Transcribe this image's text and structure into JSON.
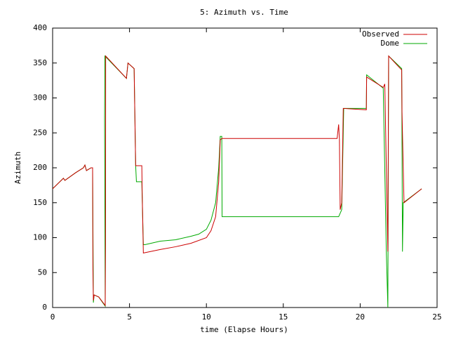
{
  "chart_data": {
    "type": "line",
    "title": "5: Azimuth vs. Time",
    "x_label": "time (Elapse Hours)",
    "y_label": "Azimuth",
    "xlim": [
      0,
      25
    ],
    "ylim": [
      0,
      400
    ],
    "xticks": [
      0,
      5,
      10,
      15,
      20,
      25
    ],
    "yticks": [
      0,
      50,
      100,
      150,
      200,
      250,
      300,
      350,
      400
    ],
    "legend": "top-right",
    "series": [
      {
        "name": "Observed",
        "color": "#cc0000",
        "x": [
          0,
          0.7,
          0.8,
          1.5,
          2.0,
          2.1,
          2.2,
          2.5,
          2.6,
          2.62,
          2.65,
          2.7,
          3.0,
          3.42,
          3.44,
          3.45,
          4.8,
          4.9,
          5.3,
          5.4,
          5.45,
          5.8,
          5.82,
          5.9,
          7,
          8,
          9,
          10,
          10.3,
          10.6,
          10.8,
          10.9,
          11.0,
          18.5,
          18.6,
          18.65,
          18.7,
          18.8,
          18.9,
          20.4,
          20.42,
          21.5,
          21.6,
          21.8,
          21.85,
          22.7,
          22.72,
          22.8,
          22.85,
          24
        ],
        "values": [
          170,
          185,
          182,
          193,
          200,
          204,
          196,
          200,
          200,
          55,
          10,
          18,
          15,
          3,
          90,
          360,
          328,
          350,
          342,
          203,
          203,
          203,
          170,
          78,
          83,
          87,
          92,
          100,
          110,
          130,
          180,
          240,
          242,
          242,
          262,
          240,
          140,
          150,
          285,
          283,
          330,
          315,
          320,
          80,
          360,
          340,
          280,
          200,
          150,
          170
        ]
      },
      {
        "name": "Dome",
        "color": "#00aa00",
        "x": [
          0,
          0.7,
          0.8,
          1.5,
          2.0,
          2.1,
          2.2,
          2.5,
          2.6,
          2.65,
          2.7,
          3.0,
          3.42,
          3.38,
          3.4,
          4.8,
          4.9,
          5.3,
          5.4,
          5.45,
          5.8,
          5.9,
          6,
          7,
          8,
          9,
          9.5,
          10,
          10.3,
          10.6,
          10.8,
          10.9,
          11.0,
          11.02,
          18.6,
          18.7,
          18.8,
          18.93,
          20.4,
          20.42,
          21.5,
          21.7,
          21.8,
          21.85,
          22.7,
          22.75,
          22.8,
          24
        ],
        "values": [
          170,
          185,
          182,
          193,
          200,
          204,
          196,
          200,
          200,
          7,
          18,
          15,
          2,
          270,
          360,
          328,
          350,
          342,
          203,
          180,
          180,
          90,
          90,
          95,
          97,
          102,
          105,
          112,
          125,
          150,
          200,
          245,
          245,
          130,
          130,
          135,
          140,
          285,
          285,
          333,
          314,
          80,
          0,
          360,
          342,
          80,
          150,
          170
        ]
      }
    ]
  }
}
